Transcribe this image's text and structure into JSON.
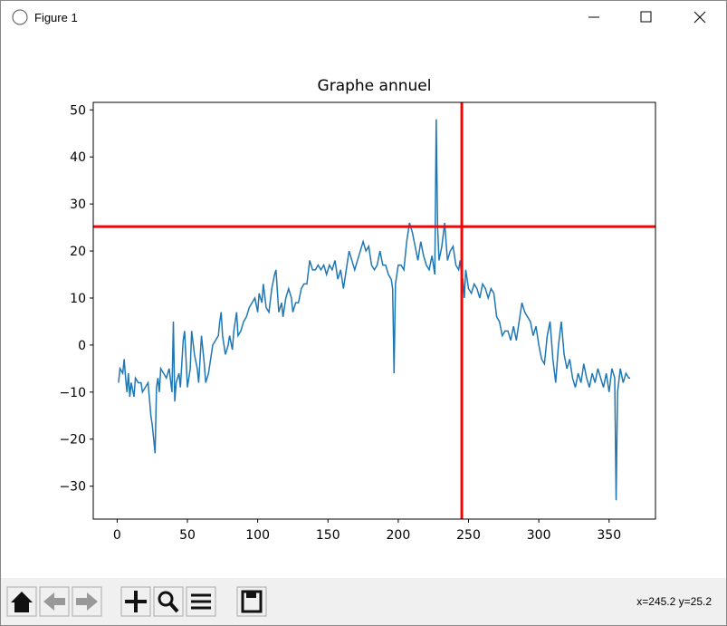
{
  "window": {
    "title": "Figure 1"
  },
  "chart_data": {
    "type": "line",
    "title": "Graphe annuel",
    "x": [
      1,
      2,
      4,
      5,
      6,
      7,
      8,
      9,
      10,
      12,
      13,
      15,
      17,
      18,
      20,
      22,
      24,
      25,
      26,
      27,
      28,
      29,
      30,
      31,
      33,
      35,
      37,
      39,
      40,
      41,
      42,
      44,
      45,
      47,
      48,
      50,
      52,
      53,
      55,
      57,
      58,
      60,
      62,
      63,
      65,
      67,
      68,
      70,
      72,
      73,
      74,
      75,
      77,
      79,
      80,
      82,
      83,
      85,
      86,
      88,
      90,
      92,
      94,
      96,
      98,
      100,
      101,
      103,
      104,
      106,
      108,
      110,
      112,
      113,
      115,
      117,
      118,
      120,
      122,
      124,
      125,
      127,
      129,
      131,
      133,
      135,
      137,
      139,
      141,
      143,
      145,
      147,
      149,
      151,
      153,
      155,
      157,
      159,
      161,
      163,
      165,
      167,
      169,
      171,
      173,
      175,
      177,
      179,
      181,
      183,
      185,
      187,
      189,
      191,
      193,
      195,
      196,
      197,
      198,
      200,
      202,
      204,
      206,
      208,
      210,
      212,
      214,
      216,
      218,
      220,
      222,
      224,
      226,
      227,
      228,
      229,
      231,
      233,
      235,
      237,
      239,
      241,
      243,
      244,
      245,
      246,
      247,
      248,
      250,
      252,
      254,
      256,
      258,
      260,
      262,
      264,
      266,
      268,
      270,
      272,
      274,
      276,
      278,
      280,
      282,
      284,
      286,
      288,
      290,
      292,
      294,
      296,
      298,
      300,
      302,
      304,
      306,
      308,
      310,
      312,
      314,
      316,
      318,
      320,
      322,
      324,
      326,
      328,
      330,
      332,
      334,
      336,
      338,
      340,
      342,
      344,
      346,
      348,
      350,
      352,
      354,
      355,
      356,
      358,
      360,
      362,
      364,
      365
    ],
    "series": [
      {
        "color": "#1f77b4",
        "values": [
          -8,
          -5,
          -6,
          -3,
          -7,
          -10,
          -6,
          -11,
          -8,
          -11,
          -7,
          -8,
          -8,
          -10,
          -9,
          -8,
          -15,
          -17,
          -20,
          -23,
          -9,
          -7,
          -10,
          -5,
          -6,
          -7,
          -5,
          -10,
          5,
          -12,
          -8,
          -6,
          -9,
          1,
          3,
          -9,
          -5,
          3,
          -2,
          -5,
          -8,
          2,
          -4,
          -8,
          -6,
          -2,
          0,
          1,
          2,
          5,
          7,
          2,
          -2,
          0,
          2,
          -1,
          3,
          7,
          2,
          3,
          5,
          6,
          8,
          9,
          10,
          7,
          11,
          9,
          13,
          8,
          7,
          12,
          15,
          16,
          7,
          9,
          6,
          10,
          12,
          10,
          7,
          9,
          9,
          12,
          13,
          13,
          18,
          16,
          16,
          17,
          16,
          17,
          15,
          17,
          16,
          18,
          14,
          16,
          12,
          16,
          20,
          18,
          16,
          18,
          20,
          22,
          20,
          21,
          17,
          16,
          17,
          20,
          17,
          17,
          15,
          14,
          12,
          -6,
          13,
          17,
          17,
          16,
          22,
          26,
          24,
          21,
          18,
          22,
          19,
          17,
          16,
          19,
          15,
          48,
          25,
          18,
          21,
          26,
          18,
          20,
          21,
          17,
          16,
          18,
          15,
          14,
          10,
          16,
          12,
          11,
          13,
          12,
          10,
          13,
          12,
          10,
          12,
          11,
          6,
          5,
          2,
          3,
          3,
          1,
          4,
          1,
          5,
          9,
          7,
          6,
          5,
          2,
          4,
          0,
          -3,
          -4,
          2,
          5,
          -3,
          -8,
          0,
          5,
          -2,
          -5,
          -3,
          -7,
          -9,
          -6,
          -8,
          -4,
          -7,
          -9,
          -6,
          -8,
          -5,
          -7,
          -9,
          -6,
          -10,
          -5,
          -7,
          -33,
          -10,
          -5,
          -8,
          -6,
          -7,
          -7
        ]
      }
    ],
    "xlim": [
      -17,
      383
    ],
    "ylim": [
      -37,
      51.6
    ],
    "xticks": [
      0,
      50,
      100,
      150,
      200,
      250,
      300,
      350
    ],
    "yticks": [
      {
        "value": -30,
        "label": "−30"
      },
      {
        "value": -20,
        "label": "−20"
      },
      {
        "value": -10,
        "label": "−10"
      },
      0,
      10,
      20,
      30,
      40,
      50
    ],
    "hlines": [
      25.2
    ],
    "vlines": [
      245.2
    ],
    "cursor_color": "#ff0000"
  },
  "status": "x=245.2 y=25.2"
}
